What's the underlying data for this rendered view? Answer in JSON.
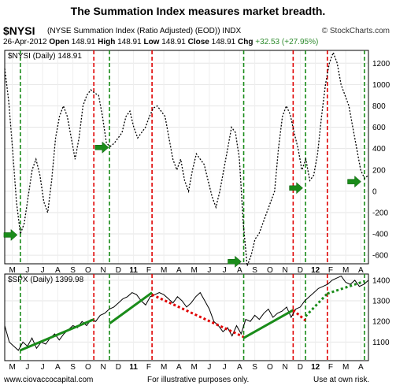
{
  "header": {
    "title": "The Summation Index measures market breadth.",
    "ticker": "$NYSI",
    "description": "(NYSE Summation Index (Ratio Adjusted) (EOD)) INDX",
    "brand": "© StockCharts.com",
    "date": "26-Apr-2012",
    "open_label": "Open",
    "open": "148.91",
    "high_label": "High",
    "high": "148.91",
    "low_label": "Low",
    "low": "148.91",
    "close_label": "Close",
    "close": "148.91",
    "chg_label": "Chg",
    "chg": "+32.53 (+27.95%)"
  },
  "footer": {
    "left": "www.ciovaccocapital.com",
    "center": "For illustrative purposes only.",
    "right": "Use at own risk."
  },
  "colors": {
    "green": "#1a8c1a",
    "red": "#e00000",
    "series": "#000000"
  },
  "chart_data": [
    {
      "type": "line",
      "legend": "$NYSI (Daily) 148.91",
      "x_tick_labels": [
        "M",
        "J",
        "J",
        "A",
        "S",
        "O",
        "N",
        "D",
        "11",
        "F",
        "M",
        "A",
        "M",
        "J",
        "J",
        "A",
        "S",
        "O",
        "N",
        "D",
        "12",
        "F",
        "M",
        "A"
      ],
      "y_ticks": [
        -600,
        -400,
        -200,
        0,
        200,
        400,
        600,
        800,
        1000,
        1200
      ],
      "ylim": [
        -680,
        1320
      ],
      "series": [
        {
          "values": [
            1150,
            850,
            400,
            -100,
            -400,
            -300,
            -50,
            200,
            300,
            150,
            -100,
            -200,
            100,
            500,
            700,
            800,
            700,
            500,
            300,
            500,
            800,
            900,
            950,
            920,
            900,
            700,
            450,
            420,
            450,
            500,
            550,
            700,
            750,
            600,
            500,
            550,
            600,
            700,
            780,
            800,
            750,
            700,
            500,
            300,
            200,
            300,
            100,
            0,
            200,
            350,
            300,
            250,
            100,
            -50,
            -150,
            0,
            200,
            400,
            600,
            550,
            300,
            -300,
            -700,
            -600,
            -450,
            -400,
            -300,
            -200,
            -100,
            0,
            400,
            700,
            800,
            720,
            550,
            400,
            200,
            300,
            100,
            150,
            350,
            700,
            1000,
            1200,
            1300,
            1200,
            1000,
            900,
            800,
            600,
            400,
            200,
            120,
            150
          ]
        }
      ],
      "vlines": [
        {
          "at": 0.043,
          "color": "green"
        },
        {
          "at": 0.245,
          "color": "red"
        },
        {
          "at": 0.288,
          "color": "green"
        },
        {
          "at": 0.405,
          "color": "red"
        },
        {
          "at": 0.657,
          "color": "green"
        },
        {
          "at": 0.793,
          "color": "red"
        },
        {
          "at": 0.827,
          "color": "green"
        },
        {
          "at": 0.887,
          "color": "red"
        },
        {
          "at": 0.989,
          "color": "green"
        }
      ],
      "arrows": [
        {
          "at": 0.015,
          "value": -410
        },
        {
          "at": 0.266,
          "value": 410
        },
        {
          "at": 0.631,
          "value": -660
        },
        {
          "at": 0.8,
          "value": 30
        },
        {
          "at": 0.96,
          "value": 90
        }
      ]
    },
    {
      "type": "line",
      "legend": "$SPX (Daily) 1399.98",
      "x_tick_labels": [
        "M",
        "J",
        "J",
        "A",
        "S",
        "O",
        "N",
        "D",
        "11",
        "F",
        "M",
        "A",
        "M",
        "J",
        "J",
        "A",
        "S",
        "O",
        "N",
        "D",
        "12",
        "F",
        "M",
        "A"
      ],
      "y_ticks": [
        1100,
        1200,
        1300,
        1400
      ],
      "ylim": [
        1010,
        1430
      ],
      "series": [
        {
          "values": [
            1180,
            1100,
            1080,
            1060,
            1100,
            1080,
            1120,
            1070,
            1100,
            1090,
            1120,
            1140,
            1110,
            1140,
            1160,
            1180,
            1170,
            1200,
            1180,
            1210,
            1200,
            1230,
            1240,
            1260,
            1270,
            1290,
            1310,
            1320,
            1340,
            1330,
            1300,
            1280,
            1320,
            1330,
            1340,
            1330,
            1310,
            1290,
            1320,
            1300,
            1270,
            1290,
            1320,
            1340,
            1300,
            1260,
            1200,
            1180,
            1150,
            1170,
            1130,
            1180,
            1140,
            1210,
            1200,
            1230,
            1210,
            1240,
            1260,
            1220,
            1240,
            1250,
            1270,
            1220,
            1260,
            1270,
            1300,
            1320,
            1340,
            1360,
            1370,
            1380,
            1400,
            1410,
            1420,
            1390,
            1380,
            1400,
            1370,
            1380,
            1400
          ]
        }
      ],
      "trendlines": [
        {
          "from": [
            0.043,
            1060
          ],
          "to": [
            0.245,
            1210
          ],
          "color": "green",
          "style": "solid"
        },
        {
          "from": [
            0.288,
            1190
          ],
          "to": [
            0.405,
            1340
          ],
          "color": "green",
          "style": "solid"
        },
        {
          "from": [
            0.405,
            1330
          ],
          "to": [
            0.657,
            1125
          ],
          "color": "red",
          "style": "dotted"
        },
        {
          "from": [
            0.657,
            1120
          ],
          "to": [
            0.793,
            1255
          ],
          "color": "green",
          "style": "solid"
        },
        {
          "from": [
            0.793,
            1255
          ],
          "to": [
            0.827,
            1205
          ],
          "color": "red",
          "style": "dotted"
        },
        {
          "from": [
            0.827,
            1225
          ],
          "to": [
            0.887,
            1335
          ],
          "color": "green",
          "style": "dotted"
        },
        {
          "from": [
            0.887,
            1335
          ],
          "to": [
            0.989,
            1395
          ],
          "color": "green",
          "style": "dotted"
        }
      ]
    }
  ]
}
